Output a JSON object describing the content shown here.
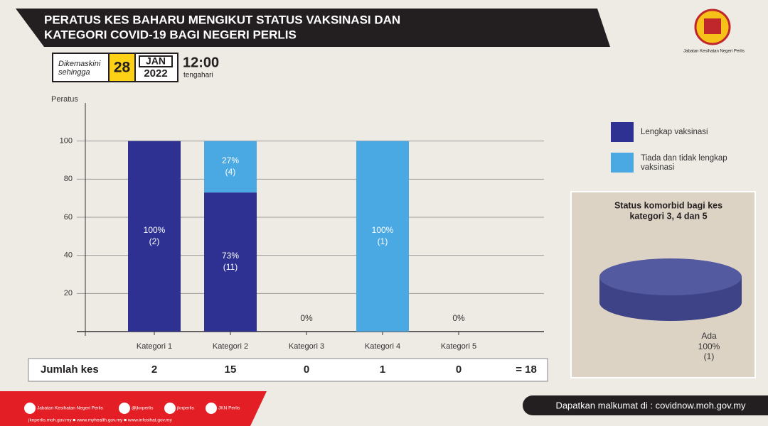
{
  "header": {
    "title_lines": [
      "PERATUS KES BAHARU MENGIKUT STATUS VAKSINASI  DAN",
      "KATEGORI COVID-19 BAGI NEGERI PERLIS"
    ],
    "logo_caption": "Jabatan Kesihatan Negeri Perlis"
  },
  "date": {
    "updated_lines": [
      "Dikemaskini",
      "sehingga"
    ],
    "day": "28",
    "month": "JAN",
    "year": "2022",
    "time": "12:00",
    "time_note": "tengahari"
  },
  "chart_data": [
    {
      "type": "bar",
      "stacked": true,
      "y_label": "Peratus",
      "categories": [
        "Kategori 1",
        "Kategori 2",
        "Kategori 3",
        "Kategori 4",
        "Kategori 5"
      ],
      "series": [
        {
          "name": "Lengkap vaksinasi",
          "color": "#2e3192",
          "values": [
            100,
            73,
            0,
            0,
            0
          ],
          "value_labels": [
            "100%",
            "73%",
            "0%",
            null,
            "0%"
          ],
          "count_labels": [
            "(2)",
            "(11)",
            null,
            null,
            null
          ]
        },
        {
          "name": "Tiada dan tidak lengkap vaksinasi",
          "color": "#4aa8e2",
          "values": [
            0,
            27,
            0,
            100,
            0
          ],
          "value_labels": [
            null,
            "27%",
            null,
            "100%",
            null
          ],
          "count_labels": [
            null,
            "(4)",
            null,
            "(1)",
            null
          ]
        }
      ],
      "ylim": [
        0,
        120
      ],
      "yticks": [
        20,
        40,
        60,
        80,
        100
      ],
      "grid": true,
      "legend": "top-right"
    },
    {
      "type": "pie",
      "title_lines": [
        "Status komorbid bagi kes",
        "kategori 3, 4 dan 5"
      ],
      "categories": [
        "Ada"
      ],
      "values": [
        100
      ],
      "value_labels": [
        "100%"
      ],
      "count_labels": [
        "(1)"
      ],
      "color": "#545aa0"
    }
  ],
  "table": {
    "label": "Jumlah kes",
    "values": [
      2,
      15,
      0,
      1,
      0
    ],
    "total": "= 18"
  },
  "footer": {
    "social": [
      "Jabatan Kesihatan Negeri Perlis",
      "@jknperlis",
      "jknperlis",
      "JKN Perlis"
    ],
    "links": "jknperlis.moh.gov.my ■ www.myhealth.gov.my ■ www.infosihat.gov.my",
    "info": "Dapatkan malkumat di : covidnow.moh.gov.my"
  }
}
